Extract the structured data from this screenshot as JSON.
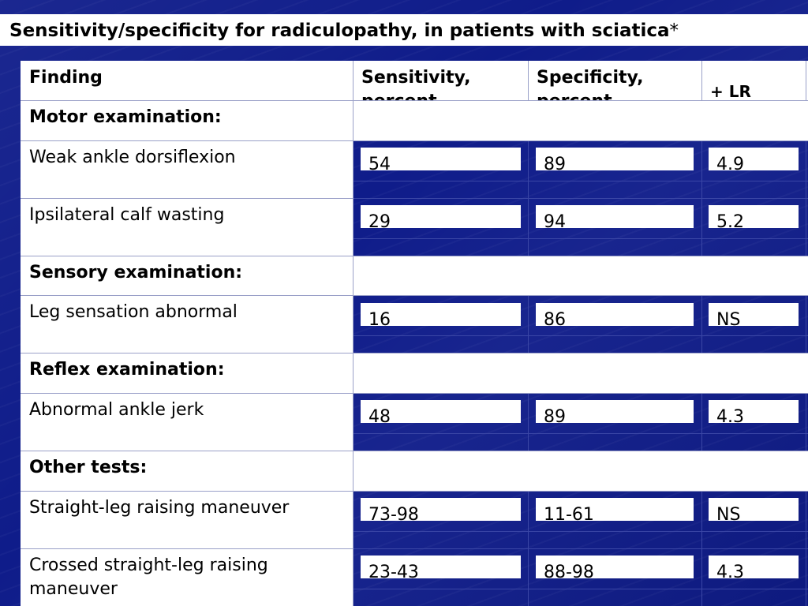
{
  "title": {
    "text": "Sensitivity/specificity for radiculopathy, in patients with sciatica",
    "asterisk": "*"
  },
  "table": {
    "headers": {
      "finding": "Finding",
      "sensitivity": "Sensitivity, percent",
      "specificity": "Specificity, percent",
      "lr": "+ LR"
    },
    "sections": {
      "motor": "Motor examination:",
      "sensory": "Sensory examination:",
      "reflex": "Reflex examination:",
      "other": "Other tests:"
    },
    "rows": [
      {
        "finding": "Weak ankle dorsiflexion",
        "sensitivity": "54",
        "specificity": "89",
        "lr": "4.9"
      },
      {
        "finding": "Ipsilateral calf wasting",
        "sensitivity": "29",
        "specificity": "94",
        "lr": "5.2"
      },
      {
        "finding": "Leg sensation abnormal",
        "sensitivity": "16",
        "specificity": "86",
        "lr": "NS"
      },
      {
        "finding": "Abnormal ankle jerk",
        "sensitivity": "48",
        "specificity": "89",
        "lr": "4.3"
      },
      {
        "finding": "Straight-leg raising maneuver",
        "sensitivity": "73-98",
        "specificity": "11-61",
        "lr": "NS"
      },
      {
        "finding_line1": "Crossed straight-leg raising",
        "finding_line2": "maneuver",
        "sensitivity": "23-43",
        "specificity": "88-98",
        "lr": "4.3"
      }
    ]
  }
}
